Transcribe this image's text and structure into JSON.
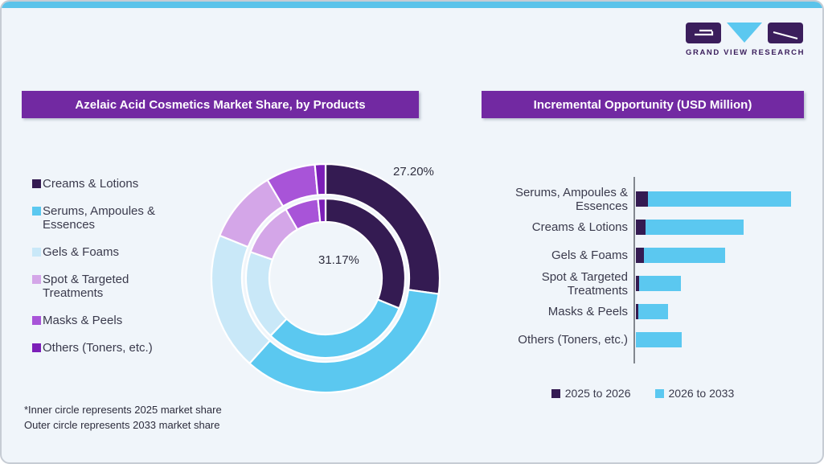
{
  "brand": {
    "name": "GRAND VIEW RESEARCH"
  },
  "colors": {
    "card_background": "#f0f5fa",
    "top_strip_cyan": "#5bc3ea",
    "banner_purple": "#7229a2",
    "logo_purple": "#3b1e5c",
    "dark_purple": "#341b52",
    "sky_blue": "#5bc8f0",
    "pale_blue": "#c9e8f8",
    "lavender": "#d4a6e8",
    "medium_purple": "#a854d8",
    "deep_violet": "#7c1fb8",
    "axis_gray": "#82878f",
    "text_dark": "#3a3a4c"
  },
  "chart_data": [
    {
      "type": "donut",
      "title": "Azelaic Acid Cosmetics Market Share, by Products",
      "categories": [
        "Creams & Lotions",
        "Serums, Ampoules &\nEssences",
        "Gels & Foams",
        "Spot & Targeted\nTreatments",
        "Masks & Peels",
        "Others (Toners, etc.)"
      ],
      "colors": [
        "#341b52",
        "#5bc8f0",
        "#c9e8f8",
        "#d4a6e8",
        "#a854d8",
        "#7c1fb8"
      ],
      "units": "percent of market share",
      "series": [
        {
          "name": "2025 market share (inner circle)",
          "values": [
            31.17,
            31.0,
            18.2,
            11.3,
            6.8,
            1.53
          ]
        },
        {
          "name": "2033 market share (outer circle)",
          "values": [
            27.2,
            34.4,
            19.5,
            10.4,
            7.0,
            1.5
          ]
        }
      ],
      "values_note": "Only 27.20% (outer) and 31.17% (inner) are printed on the chart; other slice values estimated from arc angles",
      "percent_labels": [
        {
          "text": "27.20%",
          "series": "2033 market share (outer circle)",
          "category": "Creams & Lotions"
        },
        {
          "text": "31.17%",
          "series": "2025 market share (inner circle)",
          "category": "Creams & Lotions"
        }
      ],
      "footnote": [
        "*Inner circle represents 2025 market share",
        "Outer circle represents 2033 market share"
      ],
      "legend_position": "left"
    },
    {
      "type": "bar",
      "title": "Incremental Opportunity (USD Million)",
      "orientation": "horizontal",
      "stacked": true,
      "categories": [
        "Serums, Ampoules &\nEssences",
        "Creams & Lotions",
        "Gels & Foams",
        "Spot & Targeted\nTreatments",
        "Masks & Peels",
        "Others (Toners, etc.)"
      ],
      "units": "relative length (no numeric axis or value labels shown)",
      "series": [
        {
          "name": "2025 to 2026",
          "color": "#341b52",
          "values": [
            15,
            12,
            10,
            4,
            3,
            0
          ]
        },
        {
          "name": "2026 to 2033",
          "color": "#5bc8f0",
          "values": [
            178,
            122,
            101,
            52,
            37,
            57
          ]
        }
      ],
      "legend_position": "bottom"
    }
  ]
}
